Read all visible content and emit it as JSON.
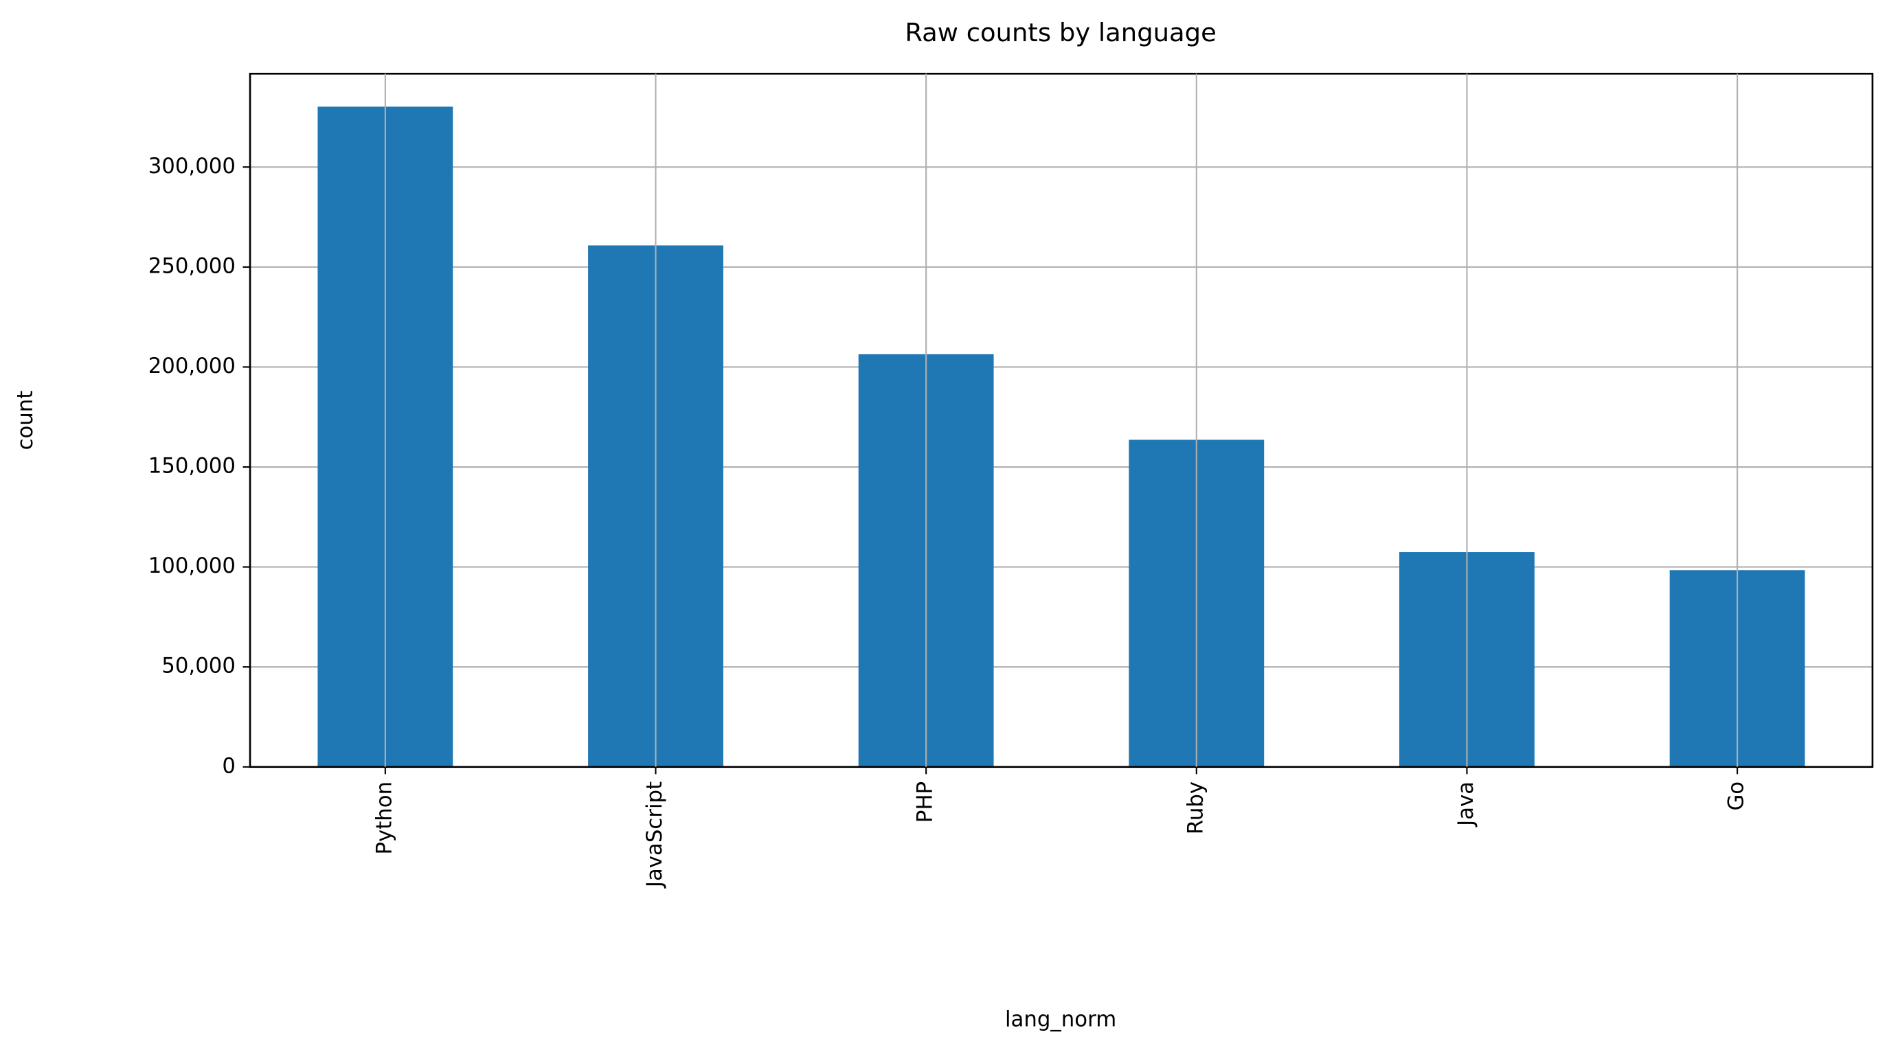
{
  "chart_data": {
    "type": "bar",
    "title": "Raw counts by language",
    "x_label": "lang_norm",
    "y_label": "count",
    "categories": [
      "Python",
      "JavaScript",
      "PHP",
      "Ruby",
      "Java",
      "Go"
    ],
    "values": [
      330200,
      260800,
      206400,
      163600,
      107400,
      98400
    ],
    "color": "#1f77b4",
    "ylim": [
      0,
      346700
    ],
    "yticks": [
      0,
      {
        "value": 50000,
        "label": "50,000"
      },
      {
        "value": 100000,
        "label": "100,000"
      },
      {
        "value": 150000,
        "label": "150,000"
      },
      {
        "value": 200000,
        "label": "200,000"
      },
      {
        "value": 250000,
        "label": "250,000"
      },
      {
        "value": 300000,
        "label": "300,000"
      }
    ],
    "grid": true
  }
}
